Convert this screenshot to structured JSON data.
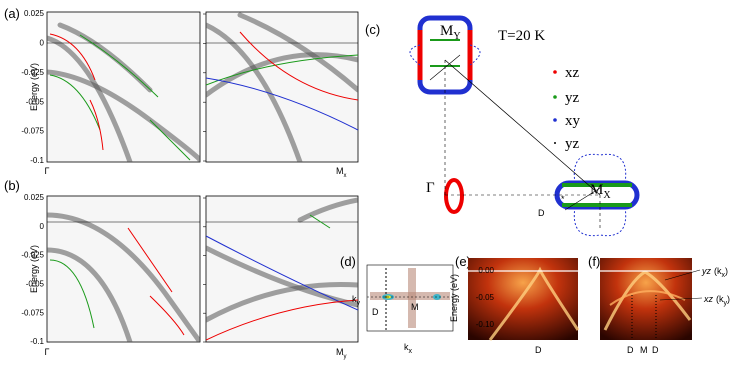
{
  "panel_a": {
    "label": "(a)",
    "y_label": "Energy (eV)",
    "y_ticks": [
      "0.025",
      "0",
      "-0.025",
      "-0.05",
      "-0.075",
      "-0.1"
    ],
    "x_left": "Γ",
    "x_right": "M",
    "x_right_sub": "x"
  },
  "panel_b": {
    "label": "(b)",
    "y_label": "Energy (eV)",
    "y_ticks": [
      "0.025",
      "0",
      "-0.025",
      "-0.05",
      "-0.075",
      "-0.1"
    ],
    "x_left": "Γ",
    "x_right": "M",
    "x_right_sub": "y"
  },
  "panel_c": {
    "label": "(c)",
    "my": "M",
    "my_sub": "Y",
    "temperature": "T=20 K",
    "legend": [
      "xz",
      "yz",
      "xy",
      "yz"
    ],
    "gamma": "Γ",
    "d": "D",
    "star": "*",
    "mx": "M",
    "mx_sub": "X"
  },
  "panel_d": {
    "label": "(d)",
    "y_label": "k",
    "y_label_sub": "y",
    "x_label": "k",
    "x_label_sub": "x",
    "d": "D",
    "m": "M"
  },
  "panel_e": {
    "label": "(e)",
    "y_label": "Energy (eV)",
    "y_ticks": [
      "0.00",
      "-0.05",
      "-0.10"
    ],
    "x_label": "D"
  },
  "panel_f": {
    "label": "(f)",
    "x_labels": [
      "D",
      "M",
      "D"
    ],
    "yz_label": "yz",
    "yz_paren": "(k",
    "yz_sub": "x",
    "yz_close": ")",
    "xz_label": "xz",
    "xz_paren": "(k",
    "xz_sub": "y",
    "xz_close": ")"
  }
}
